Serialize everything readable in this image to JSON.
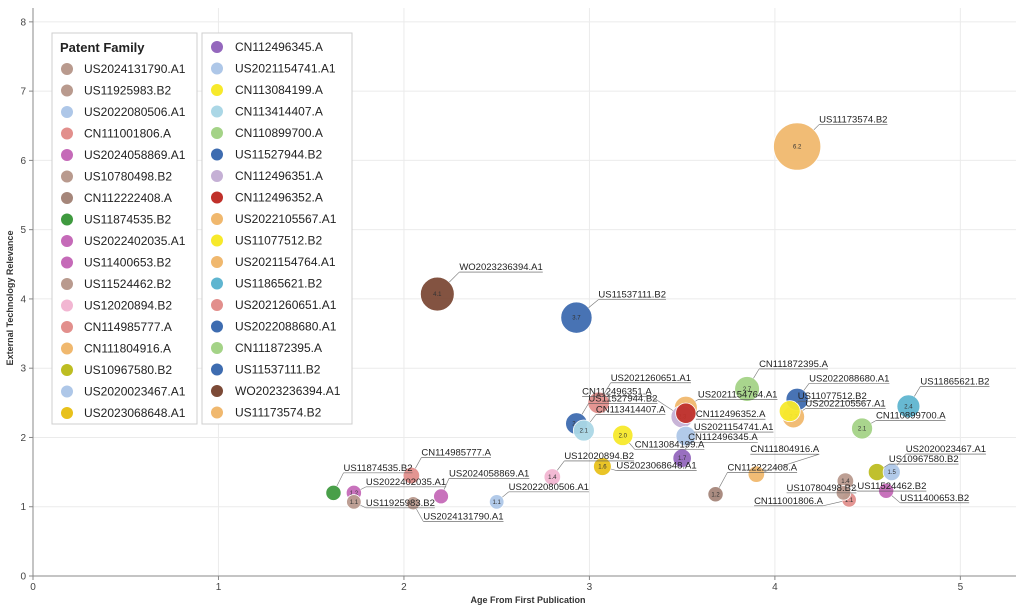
{
  "chart_data": {
    "type": "scatter",
    "xlabel": "Age From First Publication",
    "ylabel": "External Technology Relevance",
    "xlim": [
      0,
      5.3
    ],
    "ylim": [
      0,
      8.2
    ],
    "xticks": [
      "0",
      "1",
      "2",
      "3",
      "4",
      "5"
    ],
    "yticks": [
      "0",
      "1",
      "2",
      "3",
      "4",
      "5",
      "6",
      "7",
      "8"
    ],
    "legend_title": "Patent Family",
    "legend_position": "top-left",
    "series": [
      {
        "name": "US2024131790.A1",
        "color": "#b99a8e",
        "x": 2.05,
        "y": 1.05,
        "size": 0.9,
        "inner": "",
        "label_dx": 10,
        "label_dy": 16
      },
      {
        "name": "US11925983.B2",
        "color": "#b99a8e",
        "x": 1.73,
        "y": 1.07,
        "size": 1.1,
        "inner": "1.1",
        "label_dx": 12,
        "label_dy": 4
      },
      {
        "name": "US2022080506.A1",
        "color": "#aec7e8",
        "x": 2.5,
        "y": 1.07,
        "size": 1.1,
        "inner": "1.1",
        "label_dx": 12,
        "label_dy": -12
      },
      {
        "name": "CN111001806.A",
        "color": "#e28f8c",
        "x": 4.4,
        "y": 1.1,
        "size": 1.1,
        "inner": "1.1",
        "label_dx": -95,
        "label_dy": 4
      },
      {
        "name": "US2024058869.A1",
        "color": "#c56ab8",
        "x": 2.2,
        "y": 1.15,
        "size": 1.15,
        "inner": "",
        "label_dx": 8,
        "label_dy": -20
      },
      {
        "name": "US10780498.B2",
        "color": "#b99a8e",
        "x": 4.37,
        "y": 1.2,
        "size": 1.1,
        "inner": "",
        "label_dx": -57,
        "label_dy": -2
      },
      {
        "name": "CN112222408.A",
        "color": "#a5867a",
        "x": 3.68,
        "y": 1.18,
        "size": 1.2,
        "inner": "1.2",
        "label_dx": 12,
        "label_dy": -24
      },
      {
        "name": "US11874535.B2",
        "color": "#3f9a3f",
        "x": 1.62,
        "y": 1.2,
        "size": 1.2,
        "inner": "",
        "label_dx": 10,
        "label_dy": -22
      },
      {
        "name": "US2022402035.A1",
        "color": "#c56ab8",
        "x": 1.73,
        "y": 1.2,
        "size": 1.2,
        "inner": "1.2",
        "label_dx": 12,
        "label_dy": -8
      },
      {
        "name": "US11400653.B2",
        "color": "#c56ab8",
        "x": 4.6,
        "y": 1.23,
        "size": 1.2,
        "inner": "",
        "label_dx": 14,
        "label_dy": 10
      },
      {
        "name": "US11524462.B2",
        "color": "#b99a8e",
        "x": 4.38,
        "y": 1.37,
        "size": 1.4,
        "inner": "1.4",
        "label_dx": 12,
        "label_dy": 8
      },
      {
        "name": "US12020894.B2",
        "color": "#f2b6d2",
        "x": 2.8,
        "y": 1.43,
        "size": 1.4,
        "inner": "1.4",
        "label_dx": 12,
        "label_dy": -18
      },
      {
        "name": "CN114985777.A",
        "color": "#e28f8c",
        "x": 2.04,
        "y": 1.45,
        "size": 1.4,
        "inner": "",
        "label_dx": 10,
        "label_dy": -20
      },
      {
        "name": "CN111804916.A",
        "color": "#f0b86e",
        "x": 3.9,
        "y": 1.47,
        "size": 1.4,
        "inner": "",
        "label_dx": -6,
        "label_dy": -22
      },
      {
        "name": "US10967580.B2",
        "color": "#bdbd22",
        "x": 4.55,
        "y": 1.5,
        "size": 1.5,
        "inner": "",
        "label_dx": 12,
        "label_dy": -10
      },
      {
        "name": "US2020023467.A1",
        "color": "#aec7e8",
        "x": 4.63,
        "y": 1.5,
        "size": 1.5,
        "inner": "1.5",
        "label_dx": 14,
        "label_dy": -20
      },
      {
        "name": "US2023068648.A1",
        "color": "#e8c11b",
        "x": 3.07,
        "y": 1.58,
        "size": 1.6,
        "inner": "1.6",
        "label_dx": 14,
        "label_dy": 2
      },
      {
        "name": "CN112496345.A",
        "color": "#9467bd",
        "x": 3.5,
        "y": 1.7,
        "size": 1.7,
        "inner": "1.7",
        "label_dx": 6,
        "label_dy": -18
      },
      {
        "name": "US2021154741.A1",
        "color": "#aec7e8",
        "x": 3.52,
        "y": 2.02,
        "size": 1.9,
        "inner": "",
        "label_dx": 8,
        "label_dy": -6
      },
      {
        "name": "CN113084199.A",
        "color": "#f7e92b",
        "x": 3.18,
        "y": 2.03,
        "size": 2.0,
        "inner": "2.0",
        "label_dx": 12,
        "label_dy": 12
      },
      {
        "name": "CN113414407.A",
        "color": "#abd7e6",
        "x": 2.97,
        "y": 2.1,
        "size": 2.1,
        "inner": "2.1",
        "label_dx": 12,
        "label_dy": -18
      },
      {
        "name": "CN110899700.A",
        "color": "#a4d387",
        "x": 4.47,
        "y": 2.13,
        "size": 2.1,
        "inner": "2.1",
        "label_dx": 14,
        "label_dy": -10
      },
      {
        "name": "US11527944.B2",
        "color": "#3e6cb0",
        "x": 2.93,
        "y": 2.2,
        "size": 2.2,
        "inner": "2.2",
        "label_dx": 12,
        "label_dy": -22
      },
      {
        "name": "CN112496351.A",
        "color": "#c5b0d5",
        "x": 3.5,
        "y": 2.3,
        "size": 2.3,
        "inner": "2.3",
        "label_dx": -100,
        "label_dy": -22
      },
      {
        "name": "CN112496352.A",
        "color": "#c0302a",
        "x": 3.52,
        "y": 2.35,
        "size": 2.0,
        "inner": "",
        "label_dx": 10,
        "label_dy": 4
      },
      {
        "name": "US2022105567.A1",
        "color": "#f0b86e",
        "x": 4.1,
        "y": 2.3,
        "size": 2.3,
        "inner": "2.3",
        "label_dx": 12,
        "label_dy": -10
      },
      {
        "name": "US11077512.B2",
        "color": "#f7e92b",
        "x": 4.08,
        "y": 2.38,
        "size": 2.1,
        "inner": "",
        "label_dx": 8,
        "label_dy": -12
      },
      {
        "name": "US2021154764.A1",
        "color": "#f0b86e",
        "x": 3.52,
        "y": 2.43,
        "size": 2.4,
        "inner": "",
        "label_dx": 12,
        "label_dy": -10
      },
      {
        "name": "US11865621.B2",
        "color": "#5fb5d0",
        "x": 4.72,
        "y": 2.45,
        "size": 2.4,
        "inner": "2.4",
        "label_dx": 12,
        "label_dy": -22
      },
      {
        "name": "US2021260651.A1",
        "color": "#e28f8c",
        "x": 3.05,
        "y": 2.5,
        "size": 2.2,
        "inner": "",
        "label_dx": 12,
        "label_dy": -22
      },
      {
        "name": "US2022088680.A1",
        "color": "#3e6cb0",
        "x": 4.12,
        "y": 2.55,
        "size": 2.3,
        "inner": "",
        "label_dx": 12,
        "label_dy": -18
      },
      {
        "name": "CN111872395.A",
        "color": "#a4d387",
        "x": 3.85,
        "y": 2.7,
        "size": 2.7,
        "inner": "2.7",
        "label_dx": 12,
        "label_dy": -22
      },
      {
        "name": "US11537111.B2",
        "color": "#3e6cb0",
        "x": 2.93,
        "y": 3.73,
        "size": 3.7,
        "inner": "3.7",
        "label_dx": 22,
        "label_dy": -20
      },
      {
        "name": "WO2023236394.A1",
        "color": "#7c4a37",
        "x": 2.18,
        "y": 4.07,
        "size": 4.1,
        "inner": "4.1",
        "label_dx": 22,
        "label_dy": -24
      },
      {
        "name": "US11173574.B2",
        "color": "#f0b86e",
        "x": 4.12,
        "y": 6.2,
        "size": 6.2,
        "inner": "6.2",
        "label_dx": 22,
        "label_dy": -24
      }
    ]
  }
}
